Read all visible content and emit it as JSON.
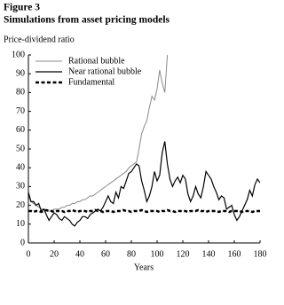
{
  "chart_data": {
    "type": "line",
    "title": "Figure 3",
    "subtitle": "Simulations from asset pricing models",
    "y_label": "Price-dividend ratio",
    "x_label": "Years",
    "x": [
      0,
      2,
      4,
      6,
      8,
      10,
      12,
      14,
      16,
      18,
      20,
      22,
      24,
      26,
      28,
      30,
      32,
      34,
      36,
      38,
      40,
      42,
      44,
      46,
      48,
      50,
      52,
      54,
      56,
      58,
      60,
      62,
      64,
      66,
      68,
      70,
      72,
      74,
      76,
      78,
      80,
      82,
      84,
      86,
      88,
      90,
      92,
      94,
      96,
      98,
      100,
      102,
      104,
      106,
      108,
      110,
      112,
      114,
      116,
      118,
      120,
      122,
      124,
      126,
      128,
      130,
      132,
      134,
      136,
      138,
      140,
      142,
      144,
      146,
      148,
      150,
      152,
      154,
      156,
      158,
      160,
      162,
      164,
      166,
      168,
      170,
      172,
      174,
      176,
      178,
      180
    ],
    "series": [
      {
        "name": "Rational bubble",
        "color": "#8a8a8a",
        "line_style": "solid",
        "width": 1,
        "values": [
          25,
          22,
          21,
          20,
          19,
          18,
          18,
          17,
          17,
          17,
          18,
          18,
          18,
          19,
          19,
          20,
          20,
          21,
          21,
          22,
          22,
          23,
          23,
          24,
          25,
          25,
          26,
          27,
          28,
          29,
          30,
          31,
          32,
          33,
          34,
          35,
          36,
          37,
          38,
          40,
          41,
          42,
          43,
          50,
          58,
          62,
          65,
          72,
          78,
          76,
          82,
          92,
          85,
          80,
          100,
          null,
          null,
          null,
          null,
          null,
          null,
          null,
          null,
          null,
          null,
          null,
          null,
          null,
          null,
          null,
          null,
          null,
          null,
          null,
          null,
          null,
          null,
          null,
          null,
          null,
          null,
          null,
          null,
          null,
          null,
          null,
          null,
          null,
          null,
          null,
          null
        ]
      },
      {
        "name": "Near rational bubble",
        "color": "#000000",
        "line_style": "solid",
        "width": 1.2,
        "values": [
          27,
          22,
          22,
          20,
          21,
          17,
          18,
          15,
          12,
          14,
          16,
          15,
          13,
          12,
          14,
          13,
          12,
          10,
          9,
          11,
          12,
          14,
          14,
          13,
          15,
          16,
          17,
          18,
          17,
          19,
          22,
          25,
          22,
          21,
          27,
          24,
          30,
          29,
          33,
          37,
          38,
          40,
          42,
          41,
          33,
          28,
          22,
          25,
          30,
          38,
          33,
          36,
          48,
          54,
          42,
          34,
          30,
          33,
          35,
          32,
          36,
          34,
          26,
          22,
          25,
          30,
          26,
          24,
          30,
          38,
          36,
          34,
          30,
          27,
          23,
          25,
          24,
          18,
          19,
          20,
          15,
          12,
          14,
          17,
          20,
          23,
          28,
          25,
          31,
          34,
          32
        ]
      },
      {
        "name": "Fundamental",
        "color": "#000000",
        "line_style": "dashed",
        "width": 2.5,
        "values": [
          17,
          17,
          16.5,
          17,
          17,
          16.5,
          17,
          17.5,
          17,
          17,
          16.5,
          17,
          17,
          17,
          16.5,
          17,
          17,
          17.5,
          17,
          16.5,
          17,
          17,
          17,
          16.5,
          17,
          17,
          17.5,
          17,
          17,
          16.5,
          17,
          17,
          17,
          16.5,
          17,
          17,
          17,
          17.5,
          17,
          17,
          16.5,
          17,
          17,
          17,
          17.5,
          17,
          16.5,
          17,
          17,
          17,
          17,
          16.5,
          17,
          17,
          17.5,
          17,
          17,
          16.5,
          17,
          17,
          17,
          17,
          16.5,
          17,
          17,
          17,
          17.5,
          17,
          17,
          16.5,
          17,
          17,
          17,
          17,
          16.5,
          17,
          17,
          17,
          16.5,
          17,
          17,
          17,
          17,
          16.5,
          17,
          17,
          17,
          16.5,
          17,
          17,
          17
        ]
      }
    ],
    "xlim": [
      0,
      180
    ],
    "xticks": [
      0,
      20,
      40,
      60,
      80,
      100,
      120,
      140,
      160,
      180
    ],
    "ylim": [
      0,
      100
    ],
    "yticks": [
      0,
      10,
      20,
      30,
      40,
      50,
      60,
      70,
      80,
      90,
      100
    ],
    "legend": "top-left",
    "grid": false
  }
}
